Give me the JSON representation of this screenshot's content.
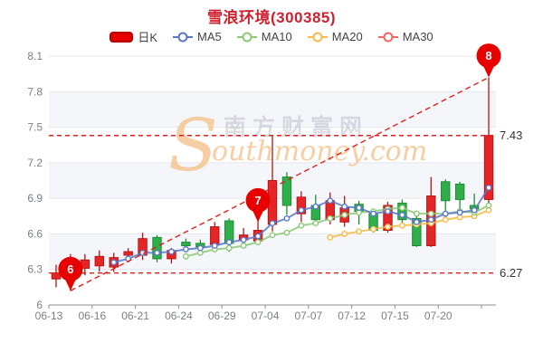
{
  "title": "雪浪环境(300385)",
  "colors": {
    "title": "#cf2030",
    "up": "#e62626",
    "up_border": "#b61414",
    "down": "#2fae4a",
    "down_border": "#1f8c34",
    "ma5": "#5878c8",
    "ma10": "#8cc878",
    "ma20": "#f7ba45",
    "ma30": "#ee6666",
    "annotation_red": "#e01f1f",
    "pin_fill": "#e60000",
    "grid_line": "#e3e7ef",
    "band_tint": "#eef1f8",
    "axis_line": "#8a8f99",
    "axis_text": "#7a7f88",
    "ref_label_text": "#333333"
  },
  "legend": {
    "items": [
      {
        "label": "日K",
        "color": "#e60000",
        "marker": "rect"
      },
      {
        "label": "MA5",
        "color": "#5878c8",
        "marker": "line-dot"
      },
      {
        "label": "MA10",
        "color": "#8cc878",
        "marker": "line-dot"
      },
      {
        "label": "MA20",
        "color": "#f7ba45",
        "marker": "line-dot"
      },
      {
        "label": "MA30",
        "color": "#ee6666",
        "marker": "line-dot"
      }
    ]
  },
  "watermark": {
    "brand_cn": "南方财富网",
    "brand_en": "Southmoney.com"
  },
  "y_axis": {
    "labels": [
      "8.1",
      "7.8",
      "7.5",
      "7.2",
      "6.9",
      "6.6",
      "6.3",
      "6"
    ],
    "tick_values": [
      8.1,
      7.8,
      7.5,
      7.2,
      6.9,
      6.6,
      6.3,
      6.0
    ]
  },
  "x_axis": {
    "labels": [
      "06-13",
      "06-16",
      "06-21",
      "06-24",
      "06-29",
      "07-04",
      "07-07",
      "07-12",
      "07-15",
      "07-20"
    ]
  },
  "annotations": {
    "ref_lines": [
      {
        "label": "7.43",
        "value": 7.43
      },
      {
        "label": "6.27",
        "value": 6.27
      }
    ],
    "trend_line": {
      "from": {
        "index": 1,
        "price": 6.12
      },
      "to": {
        "index": 30,
        "price": 7.92
      }
    },
    "markers": [
      {
        "label": "6",
        "index": 1,
        "price": 6.12
      },
      {
        "label": "7",
        "index": 14,
        "price": 6.7
      },
      {
        "label": "8",
        "index": 30,
        "price": 7.92
      }
    ]
  },
  "chart_data": {
    "type": "candlestick",
    "title": "雪浪环境(300385)",
    "ylim": [
      6.0,
      8.1
    ],
    "grid": true,
    "legend_position": "top",
    "candles": [
      {
        "d": "06-13",
        "o": 6.22,
        "c": 6.27,
        "h": 6.34,
        "l": 6.15
      },
      {
        "d": "06-14",
        "o": 6.26,
        "c": 6.32,
        "h": 6.43,
        "l": 6.12
      },
      {
        "d": "06-15",
        "o": 6.31,
        "c": 6.38,
        "h": 6.43,
        "l": 6.25
      },
      {
        "d": "06-16",
        "o": 6.33,
        "c": 6.41,
        "h": 6.46,
        "l": 6.28
      },
      {
        "d": "06-17",
        "o": 6.32,
        "c": 6.4,
        "h": 6.44,
        "l": 6.28
      },
      {
        "d": "06-20",
        "o": 6.42,
        "c": 6.45,
        "h": 6.48,
        "l": 6.36
      },
      {
        "d": "06-21",
        "o": 6.42,
        "c": 6.56,
        "h": 6.61,
        "l": 6.38
      },
      {
        "d": "06-22",
        "o": 6.57,
        "c": 6.39,
        "h": 6.59,
        "l": 6.36
      },
      {
        "d": "06-23",
        "o": 6.39,
        "c": 6.46,
        "h": 6.48,
        "l": 6.35
      },
      {
        "d": "06-24",
        "o": 6.53,
        "c": 6.5,
        "h": 6.56,
        "l": 6.46
      },
      {
        "d": "06-27",
        "o": 6.52,
        "c": 6.49,
        "h": 6.55,
        "l": 6.43
      },
      {
        "d": "06-28",
        "o": 6.51,
        "c": 6.66,
        "h": 6.7,
        "l": 6.48
      },
      {
        "d": "06-29",
        "o": 6.71,
        "c": 6.52,
        "h": 6.73,
        "l": 6.45
      },
      {
        "d": "06-30",
        "o": 6.55,
        "c": 6.59,
        "h": 6.65,
        "l": 6.48
      },
      {
        "d": "07-01",
        "o": 6.54,
        "c": 6.63,
        "h": 6.72,
        "l": 6.52
      },
      {
        "d": "07-04",
        "o": 6.68,
        "c": 7.05,
        "h": 7.43,
        "l": 6.62
      },
      {
        "d": "07-05",
        "o": 7.08,
        "c": 6.84,
        "h": 7.12,
        "l": 6.76
      },
      {
        "d": "07-06",
        "o": 6.77,
        "c": 6.91,
        "h": 6.96,
        "l": 6.7
      },
      {
        "d": "07-07",
        "o": 6.84,
        "c": 6.72,
        "h": 6.93,
        "l": 6.7
      },
      {
        "d": "07-08",
        "o": 6.72,
        "c": 6.88,
        "h": 6.95,
        "l": 6.68
      },
      {
        "d": "07-11",
        "o": 6.7,
        "c": 6.82,
        "h": 6.92,
        "l": 6.66
      },
      {
        "d": "07-12",
        "o": 6.85,
        "c": 6.79,
        "h": 6.88,
        "l": 6.68
      },
      {
        "d": "07-13",
        "o": 6.77,
        "c": 6.63,
        "h": 6.79,
        "l": 6.61
      },
      {
        "d": "07-14",
        "o": 6.63,
        "c": 6.84,
        "h": 6.87,
        "l": 6.61
      },
      {
        "d": "07-15",
        "o": 6.86,
        "c": 6.72,
        "h": 6.89,
        "l": 6.69
      },
      {
        "d": "07-18",
        "o": 6.73,
        "c": 6.5,
        "h": 6.75,
        "l": 6.49
      },
      {
        "d": "07-19",
        "o": 6.5,
        "c": 6.92,
        "h": 7.08,
        "l": 6.49
      },
      {
        "d": "07-20",
        "o": 7.04,
        "c": 6.88,
        "h": 7.06,
        "l": 6.79
      },
      {
        "d": "07-21",
        "o": 7.02,
        "c": 6.89,
        "h": 7.04,
        "l": 6.78
      },
      {
        "d": "07-22",
        "o": 6.84,
        "c": 6.81,
        "h": 6.94,
        "l": 6.78
      },
      {
        "d": "07-25",
        "o": 6.89,
        "c": 7.43,
        "h": 7.92,
        "l": 6.85
      }
    ],
    "series": [
      {
        "name": "MA5",
        "start_index": 4,
        "values": [
          6.36,
          6.39,
          6.44,
          6.44,
          6.45,
          6.47,
          6.48,
          6.5,
          6.53,
          6.55,
          6.58,
          6.69,
          6.73,
          6.8,
          6.83,
          6.88,
          6.83,
          6.82,
          6.77,
          6.79,
          6.76,
          6.7,
          6.72,
          6.77,
          6.78,
          6.8,
          6.99
        ]
      },
      {
        "name": "MA10",
        "start_index": 9,
        "values": [
          6.41,
          6.44,
          6.47,
          6.48,
          6.5,
          6.53,
          6.59,
          6.61,
          6.67,
          6.69,
          6.73,
          6.76,
          6.78,
          6.79,
          6.81,
          6.82,
          6.77,
          6.77,
          6.77,
          6.79,
          6.78,
          6.84
        ]
      },
      {
        "name": "MA20",
        "start_index": 19,
        "values": [
          6.57,
          6.6,
          6.62,
          6.64,
          6.66,
          6.67,
          6.68,
          6.69,
          6.72,
          6.74,
          6.75,
          6.8
        ]
      },
      {
        "name": "MA30",
        "start_index": null,
        "values": []
      }
    ]
  }
}
